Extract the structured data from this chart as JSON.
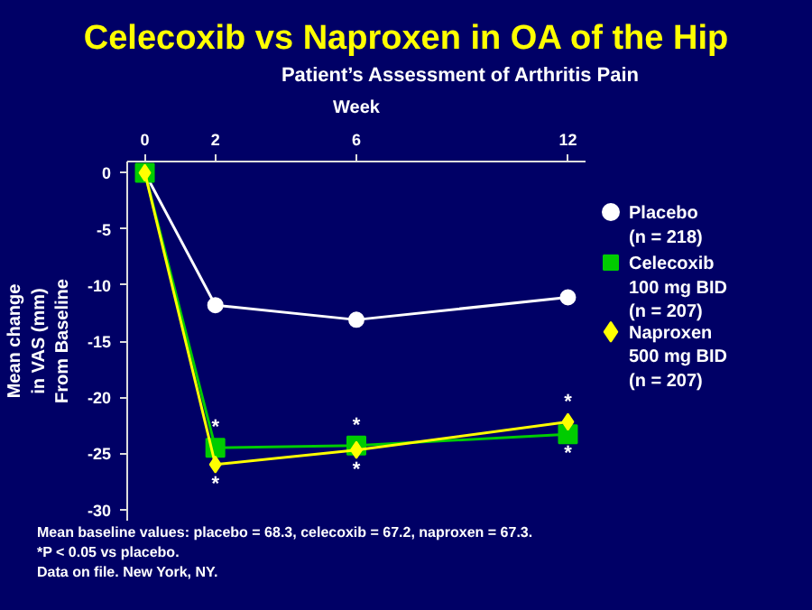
{
  "chart_data": {
    "type": "line",
    "title": "Celecoxib vs Naproxen in OA of the Hip",
    "subtitle": "Patient’s Assessment of Arthritis Pain",
    "xlabel": "Week",
    "ylabel": "Mean change\nin VAS (mm)\nFrom Baseline",
    "x": [
      0,
      2,
      6,
      12
    ],
    "series": [
      {
        "name": "Placebo\n(n = 218)",
        "color": "#ffffff",
        "marker": "circle",
        "values": [
          0,
          -11.8,
          -13.1,
          -11.1
        ]
      },
      {
        "name": "Celecoxib\n100 mg BID\n(n = 207)",
        "color": "#00cc00",
        "marker": "square",
        "values": [
          0,
          -24.5,
          -24.3,
          -23.3
        ]
      },
      {
        "name": "Naproxen\n500 mg BID\n(n = 207)",
        "color": "#ffff00",
        "marker": "diamond",
        "values": [
          0,
          -26.0,
          -24.7,
          -22.2
        ]
      }
    ],
    "xlim": [
      -0.5,
      12.5
    ],
    "xticks": [
      0,
      2,
      6,
      12
    ],
    "ylim": [
      -31,
      1
    ],
    "yticks": [
      0,
      -5,
      -10,
      -15,
      -20,
      -25,
      -30
    ],
    "grid": false,
    "legend": "right",
    "annotations": [
      {
        "text": "*",
        "x": 2,
        "y": -24.5
      },
      {
        "text": "*",
        "x": 2,
        "y": -26.0
      },
      {
        "text": "*",
        "x": 6,
        "y": -24.3
      },
      {
        "text": "*",
        "x": 6,
        "y": -24.7
      },
      {
        "text": "*",
        "x": 12,
        "y": -22.2
      },
      {
        "text": "*",
        "x": 12,
        "y": -23.3
      },
      "Mean baseline values: placebo = 68.3, celecoxib = 67.2, naproxen = 67.3.",
      "*P < 0.05 vs placebo.",
      "Data on file. New York, NY."
    ]
  }
}
